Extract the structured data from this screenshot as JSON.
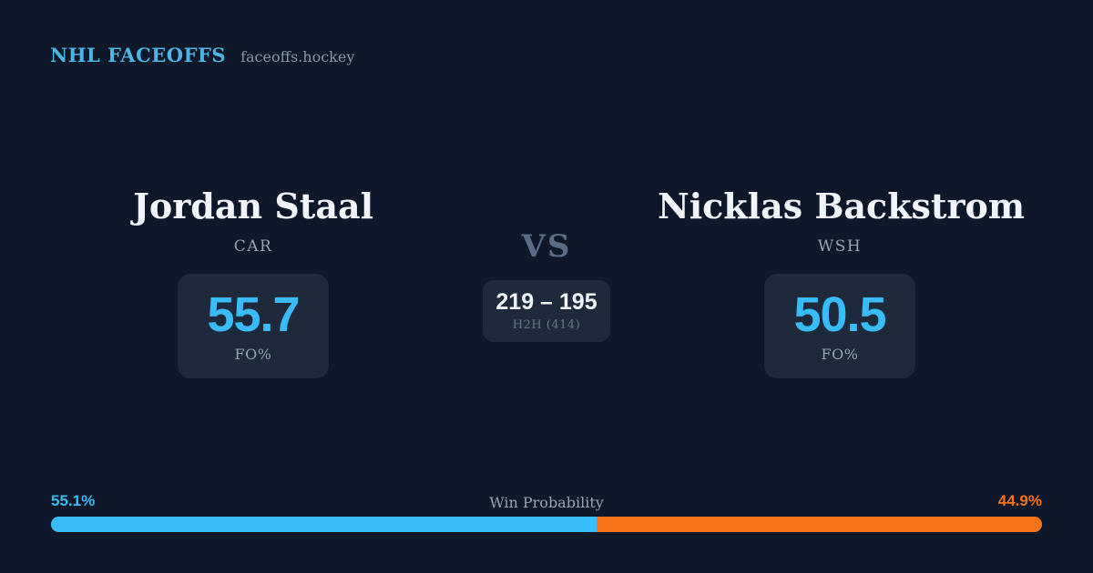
{
  "brand": {
    "title": "NHL FACEOFFS",
    "domain": "faceoffs.hockey"
  },
  "matchup": {
    "player_a": {
      "name": "Jordan Staal",
      "team": "CAR",
      "stat_value": "55.7",
      "stat_label": "FO%"
    },
    "player_b": {
      "name": "Nicklas Backstrom",
      "team": "WSH",
      "stat_value": "50.5",
      "stat_label": "FO%"
    },
    "vs_label": "VS",
    "h2h": {
      "score": "219 – 195",
      "label": "H2H (414)"
    }
  },
  "win_probability": {
    "title": "Win Probability",
    "left_pct_label": "55.1%",
    "right_pct_label": "44.9%",
    "left_value": 55.1,
    "right_value": 44.9
  },
  "colors": {
    "background": "#0f172a",
    "card_background": "#1e293b",
    "accent_blue": "#38bdf8",
    "accent_orange": "#f97316",
    "brand_blue": "#4db5e6",
    "text_primary": "#f1f5f9",
    "text_muted": "#94a3b8",
    "text_dim": "#5b6c86"
  }
}
